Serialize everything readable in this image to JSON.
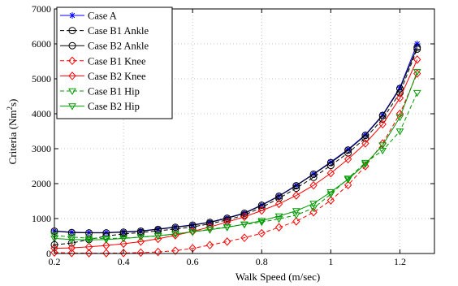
{
  "chart_data": {
    "type": "line",
    "xlabel": "Walk Speed (m/sec)",
    "ylabel_prefix": "Criteria (Nm",
    "ylabel_sup": "2",
    "ylabel_suffix": "s)",
    "xlim": [
      0.2,
      1.3
    ],
    "ylim": [
      0,
      7000
    ],
    "xticks": [
      0.2,
      0.4,
      0.6,
      0.8,
      1,
      1.2
    ],
    "xtick_labels": [
      "0.2",
      "0.4",
      "0.6",
      "0.8",
      "1",
      "1.2"
    ],
    "yticks": [
      0,
      1000,
      2000,
      3000,
      4000,
      5000,
      6000,
      7000
    ],
    "ytick_labels": [
      "0",
      "1000",
      "2000",
      "3000",
      "4000",
      "5000",
      "6000",
      "7000"
    ],
    "grid": true,
    "legend_position": "top-left",
    "x": [
      0.2,
      0.25,
      0.3,
      0.35,
      0.4,
      0.45,
      0.5,
      0.55,
      0.6,
      0.65,
      0.7,
      0.75,
      0.8,
      0.85,
      0.9,
      0.95,
      1.0,
      1.05,
      1.1,
      1.15,
      1.2,
      1.25
    ],
    "series": [
      {
        "name": "Case A",
        "color": "#0000ff",
        "dash": "",
        "marker": "star",
        "values": [
          650,
          610,
          600,
          600,
          620,
          650,
          700,
          760,
          820,
          900,
          1020,
          1160,
          1390,
          1650,
          1950,
          2280,
          2620,
          2980,
          3400,
          3970,
          4750,
          6000
        ]
      },
      {
        "name": "Case B1 Ankle",
        "color": "#000000",
        "dash": "5 3",
        "marker": "circle-dot",
        "values": [
          250,
          300,
          400,
          500,
          560,
          600,
          650,
          700,
          760,
          850,
          960,
          1100,
          1320,
          1580,
          1870,
          2180,
          2520,
          2880,
          3300,
          3850,
          4600,
          5850
        ]
      },
      {
        "name": "Case B2 Ankle",
        "color": "#000000",
        "dash": "",
        "marker": "circle",
        "values": [
          640,
          600,
          590,
          590,
          610,
          640,
          690,
          750,
          810,
          890,
          1010,
          1150,
          1380,
          1640,
          1940,
          2270,
          2600,
          2960,
          3380,
          3950,
          4720,
          5900
        ]
      },
      {
        "name": "Case B1 Knee",
        "color": "#ff0000",
        "dash": "5 3",
        "marker": "diamond",
        "values": [
          30,
          15,
          10,
          10,
          15,
          25,
          45,
          80,
          150,
          240,
          340,
          450,
          580,
          750,
          920,
          1180,
          1520,
          1960,
          2500,
          3150,
          4000,
          5150
        ]
      },
      {
        "name": "Case B2 Knee",
        "color": "#ff0000",
        "dash": "",
        "marker": "diamond",
        "values": [
          150,
          160,
          190,
          230,
          280,
          340,
          420,
          520,
          630,
          760,
          900,
          1050,
          1230,
          1420,
          1660,
          1950,
          2300,
          2700,
          3150,
          3700,
          4450,
          5550
        ]
      },
      {
        "name": "Case B1 Hip",
        "color": "#009900",
        "dash": "5 3",
        "marker": "triangle-down",
        "values": [
          520,
          470,
          440,
          430,
          440,
          470,
          500,
          560,
          620,
          690,
          760,
          830,
          900,
          990,
          1100,
          1300,
          1700,
          2150,
          2600,
          2950,
          3500,
          4600
        ]
      },
      {
        "name": "Case B2 Hip",
        "color": "#009900",
        "dash": "",
        "marker": "triangle-down",
        "values": [
          430,
          400,
          390,
          400,
          430,
          470,
          510,
          560,
          620,
          680,
          750,
          840,
          940,
          1070,
          1220,
          1430,
          1760,
          2120,
          2560,
          3100,
          3900,
          5200
        ]
      }
    ]
  }
}
